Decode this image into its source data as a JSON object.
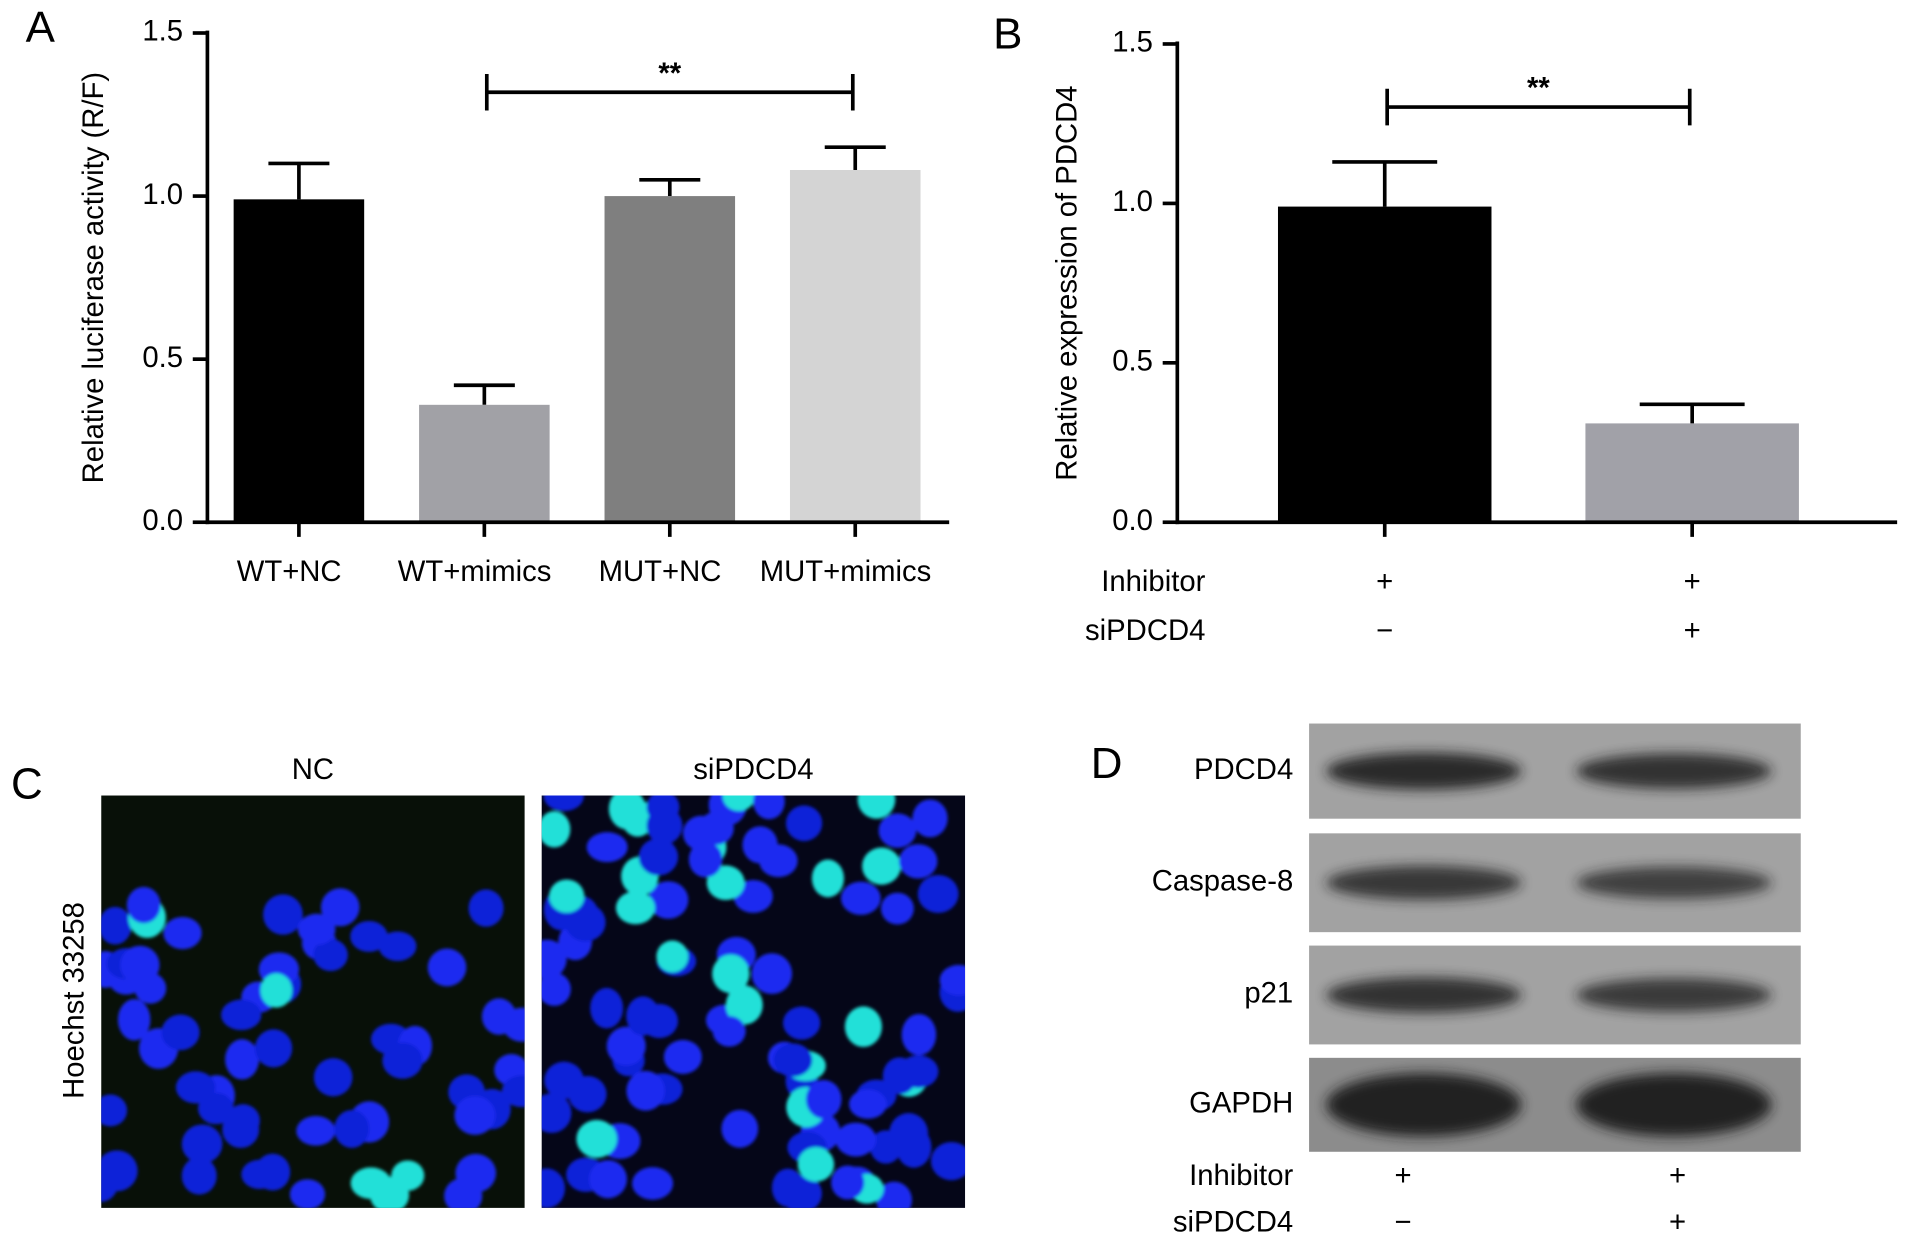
{
  "chart_data": [
    {
      "type": "bar",
      "panel_label": "A",
      "y_label": "Relative luciferase activity (R/F)",
      "categories": [
        "WT+NC",
        "WT+mimics",
        "MUT+NC",
        "MUT+mimics"
      ],
      "values": [
        0.99,
        0.36,
        1.0,
        1.08
      ],
      "errors": [
        0.11,
        0.06,
        0.05,
        0.07
      ],
      "colors": [
        "#000000",
        "#a1a1a6",
        "#7f7f7f",
        "#d4d4d4"
      ],
      "ylim": [
        0,
        1.5
      ],
      "yticks": [
        {
          "value": 0,
          "label": "0.0"
        },
        {
          "value": 0.5,
          "label": "0.5"
        },
        {
          "value": 1,
          "label": "1.0"
        },
        {
          "value": 1.5,
          "label": "1.5"
        }
      ],
      "significance": [
        {
          "label": "**",
          "between": [
            1,
            3
          ]
        }
      ]
    },
    {
      "type": "bar",
      "panel_label": "B",
      "y_label": "Relative expression of PDCD4",
      "conditions": [
        {
          "name": "Inhibitor",
          "values": [
            "+",
            "+"
          ]
        },
        {
          "name": "siPDCD4",
          "values": [
            "−",
            "+"
          ]
        }
      ],
      "values": [
        0.99,
        0.31
      ],
      "errors": [
        0.14,
        0.06
      ],
      "colors": [
        "#000000",
        "#a1a1a8"
      ],
      "ylim": [
        0,
        1.5
      ],
      "yticks": [
        {
          "value": 0,
          "label": "0.0"
        },
        {
          "value": 0.5,
          "label": "0.5"
        },
        {
          "value": 1,
          "label": "1.0"
        },
        {
          "value": 1.5,
          "label": "1.5"
        }
      ],
      "significance": [
        {
          "label": "**",
          "between": [
            0,
            1
          ]
        }
      ]
    }
  ],
  "image_panels": {
    "C": {
      "panel_label": "C",
      "stain": "Hoechst 33258",
      "columns": [
        "NC",
        "siPDCD4"
      ]
    },
    "D": {
      "panel_label": "D",
      "rows": [
        "PDCD4",
        "Caspase-8",
        "p21",
        "GAPDH"
      ],
      "conditions": [
        {
          "name": "Inhibitor",
          "values": [
            "+",
            "+"
          ]
        },
        {
          "name": "siPDCD4",
          "values": [
            "−",
            "+"
          ]
        }
      ]
    }
  }
}
